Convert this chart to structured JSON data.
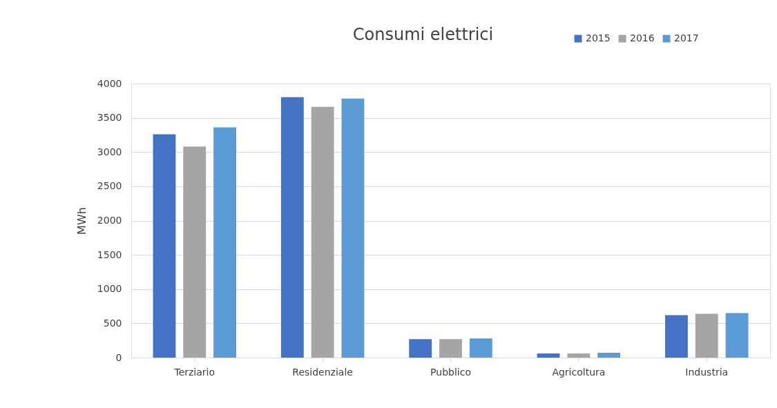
{
  "chart_data": {
    "type": "bar",
    "title": "Consumi elettrici",
    "ylabel": "MWh",
    "categories": [
      "Terziario",
      "Residenziale",
      "Pubblico",
      "Agricoltura",
      "Industria"
    ],
    "series": [
      {
        "name": "2015",
        "color": "#4472c4",
        "values": [
          3260,
          3800,
          270,
          60,
          620
        ]
      },
      {
        "name": "2016",
        "color": "#a5a5a5",
        "values": [
          3080,
          3660,
          270,
          60,
          640
        ]
      },
      {
        "name": "2017",
        "color": "#5b9bd5",
        "values": [
          3360,
          3780,
          280,
          70,
          650
        ]
      }
    ],
    "ylim": [
      0,
      4000
    ],
    "yticks": [
      0,
      500,
      1000,
      1500,
      2000,
      2500,
      3000,
      3500,
      4000
    ],
    "grid": "y",
    "legend": "top right"
  }
}
